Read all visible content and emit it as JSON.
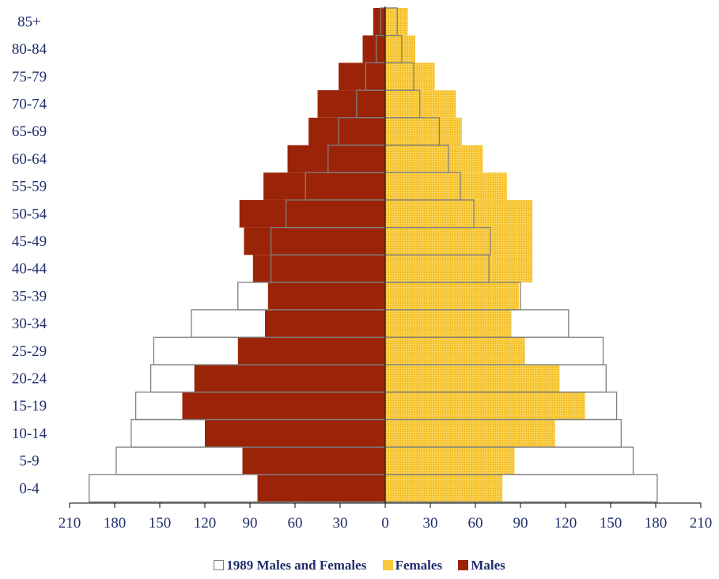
{
  "chart_data": {
    "type": "bar",
    "orientation": "horizontal",
    "categories": [
      "0-4",
      "5-9",
      "10-14",
      "15-19",
      "20-24",
      "25-29",
      "30-34",
      "35-39",
      "40-44",
      "45-49",
      "50-54",
      "55-59",
      "60-64",
      "65-69",
      "70-74",
      "75-79",
      "80-84",
      "85+"
    ],
    "series": [
      {
        "name": "Males",
        "color": "#9b2408",
        "values": [
          -85,
          -95,
          -120,
          -135,
          -127,
          -98,
          -80,
          -78,
          -88,
          -94,
          -97,
          -81,
          -65,
          -51,
          -45,
          -31,
          -15,
          -8
        ]
      },
      {
        "name": "Females",
        "color": "#f8c93a",
        "values": [
          78,
          86,
          113,
          133,
          116,
          93,
          84,
          89,
          98,
          98,
          98,
          81,
          65,
          51,
          47,
          33,
          20,
          15
        ]
      },
      {
        "name": "1989 Males and Females",
        "color": "#ffffff",
        "male_values": [
          -197,
          -179,
          -169,
          -166,
          -156,
          -154,
          -129,
          -98,
          -76,
          -76,
          -66,
          -53,
          -38,
          -31,
          -19,
          -13,
          -6,
          -3
        ],
        "female_values": [
          181,
          165,
          157,
          154,
          147,
          145,
          122,
          90,
          69,
          70,
          59,
          50,
          42,
          36,
          23,
          19,
          11,
          8
        ]
      }
    ],
    "xlim": [
      -210,
      210
    ],
    "xticks": [
      -210,
      -180,
      -150,
      -120,
      -90,
      -60,
      -30,
      0,
      30,
      60,
      90,
      120,
      150,
      180,
      210
    ],
    "xtick_labels": [
      "210",
      "180",
      "150",
      "120",
      "90",
      "60",
      "30",
      "0",
      "30",
      "60",
      "90",
      "120",
      "150",
      "180",
      "210"
    ],
    "grid": false,
    "legend_position": "bottom-center",
    "title": "",
    "xlabel": "",
    "ylabel": ""
  },
  "legend": {
    "items": [
      "1989 Males and Females",
      "Females",
      "Males"
    ]
  },
  "colors": {
    "text": "#1f2d6b",
    "outline": "#7f7f7f"
  }
}
